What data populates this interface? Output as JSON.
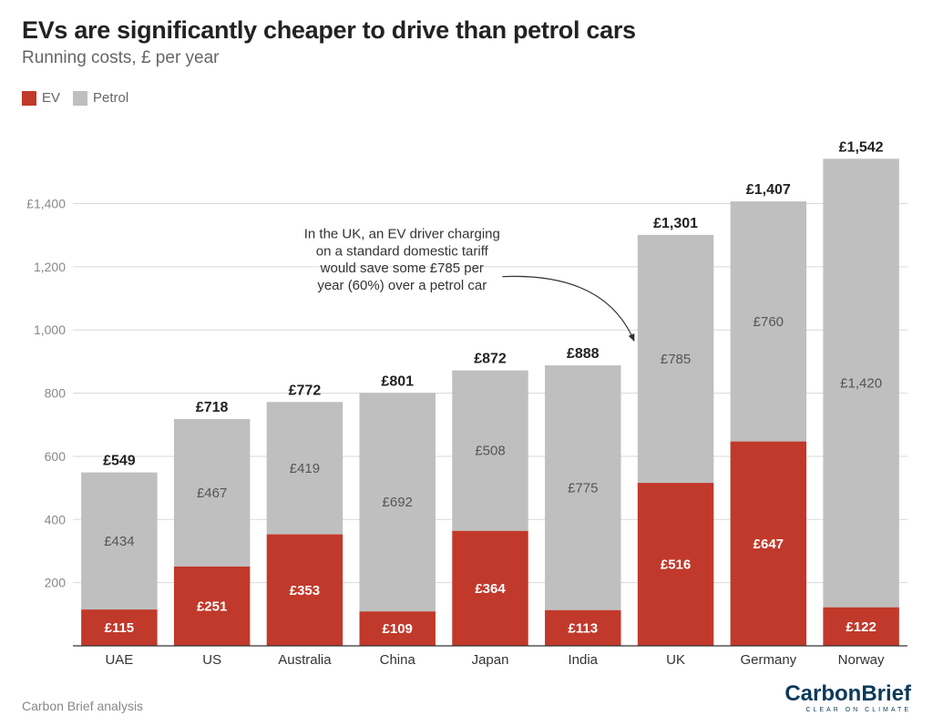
{
  "title": "EVs are significantly cheaper to drive than petrol cars",
  "subtitle": "Running costs, £ per year",
  "legend": {
    "ev": "EV",
    "petrol": "Petrol"
  },
  "colors": {
    "ev": "#c1392b",
    "petrol": "#bfbfbf",
    "axis": "#333333",
    "grid": "#d9d9d9",
    "tickLabel": "#888888",
    "barTotal": "#222222",
    "barInnerText": "#ffffff",
    "barInnerTextGrey": "#555555",
    "annotation": "#333333",
    "background": "#ffffff"
  },
  "chart": {
    "type": "stacked-bar",
    "yAxis": {
      "min": 0,
      "max": 1540,
      "ticks": [
        200,
        400,
        600,
        800,
        1000,
        1200
      ],
      "labeledTick": {
        "value": 1400,
        "label": "£1,400"
      },
      "tick_fontsize": 14
    },
    "xAxis": {
      "label_fontsize": 15
    },
    "barWidthFrac": 0.82,
    "categories": [
      "UAE",
      "US",
      "Australia",
      "China",
      "Japan",
      "India",
      "UK",
      "Germany",
      "Norway"
    ],
    "data": [
      {
        "country": "UAE",
        "ev": 115,
        "petrol": 434,
        "total": 549,
        "totalLabel": "£549",
        "evLabel": "£115",
        "petrolLabel": "£434"
      },
      {
        "country": "US",
        "ev": 251,
        "petrol": 467,
        "total": 718,
        "totalLabel": "£718",
        "evLabel": "£251",
        "petrolLabel": "£467"
      },
      {
        "country": "Australia",
        "ev": 353,
        "petrol": 419,
        "total": 772,
        "totalLabel": "£772",
        "evLabel": "£353",
        "petrolLabel": "£419"
      },
      {
        "country": "China",
        "ev": 109,
        "petrol": 692,
        "total": 801,
        "totalLabel": "£801",
        "evLabel": "£109",
        "petrolLabel": "£692"
      },
      {
        "country": "Japan",
        "ev": 364,
        "petrol": 508,
        "total": 872,
        "totalLabel": "£872",
        "evLabel": "£364",
        "petrolLabel": "£508"
      },
      {
        "country": "India",
        "ev": 113,
        "petrol": 775,
        "total": 888,
        "totalLabel": "£888",
        "evLabel": "£113",
        "petrolLabel": "£775"
      },
      {
        "country": "UK",
        "ev": 516,
        "petrol": 785,
        "total": 1301,
        "totalLabel": "£1,301",
        "evLabel": "£516",
        "petrolLabel": "£785"
      },
      {
        "country": "Germany",
        "ev": 647,
        "petrol": 760,
        "total": 1407,
        "totalLabel": "£1,407",
        "evLabel": "£647",
        "petrolLabel": "£760"
      },
      {
        "country": "Norway",
        "ev": 122,
        "petrol": 1420,
        "total": 1542,
        "totalLabel": "£1,542",
        "evLabel": "£122",
        "petrolLabel": "£1,420"
      }
    ],
    "annotation": {
      "lines": [
        "In the UK, an EV driver charging",
        "on a standard domestic tariff",
        "would save some £785 per",
        "year (60%) over a petrol car"
      ],
      "fontsize": 15
    }
  },
  "footer": {
    "source": "Carbon Brief analysis",
    "brand": {
      "part1": "Carbon",
      "part2": "Brief",
      "tagline": "CLEAR ON CLIMATE"
    }
  }
}
